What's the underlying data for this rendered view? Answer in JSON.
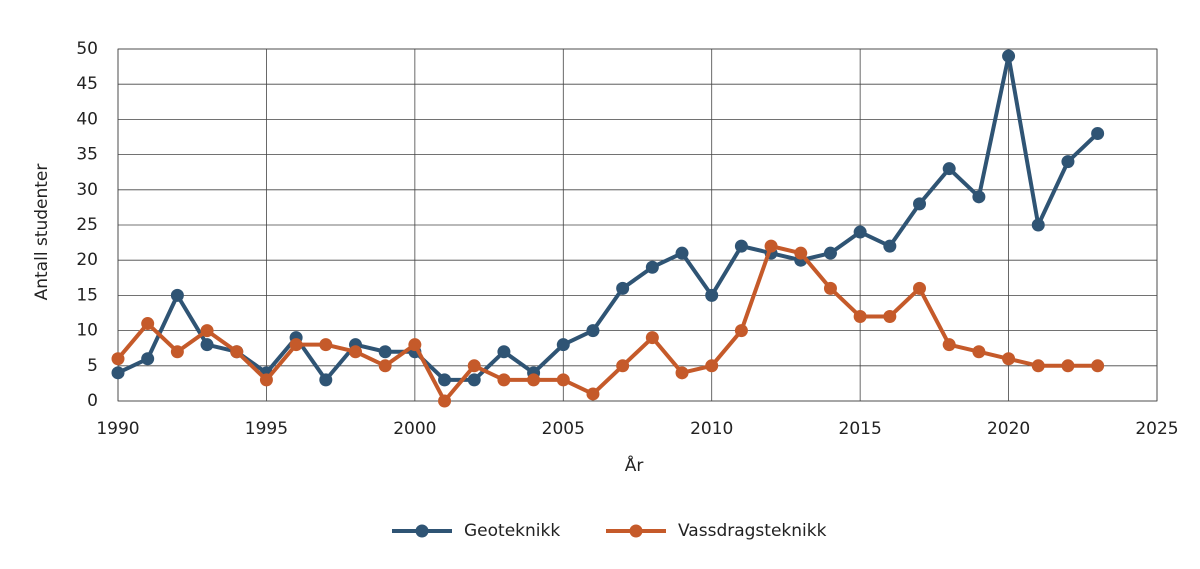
{
  "chart_data": {
    "type": "line",
    "x_label": "År",
    "y_label": "Antall studenter",
    "x": [
      1990,
      1991,
      1992,
      1993,
      1994,
      1995,
      1996,
      1997,
      1998,
      1999,
      2000,
      2001,
      2002,
      2003,
      2004,
      2005,
      2006,
      2007,
      2008,
      2009,
      2010,
      2011,
      2012,
      2013,
      2014,
      2015,
      2016,
      2017,
      2018,
      2019,
      2020,
      2021,
      2022,
      2023
    ],
    "series": [
      {
        "name": "Geoteknikk",
        "color": "#2f5474",
        "values": [
          4,
          6,
          15,
          8,
          7,
          4,
          9,
          3,
          8,
          7,
          7,
          3,
          3,
          7,
          4,
          8,
          10,
          16,
          19,
          21,
          15,
          22,
          21,
          20,
          21,
          24,
          22,
          28,
          33,
          29,
          49,
          25,
          34,
          38
        ]
      },
      {
        "name": "Vassdragsteknikk",
        "color": "#c55a2a",
        "values": [
          6,
          11,
          7,
          10,
          7,
          3,
          8,
          8,
          7,
          5,
          8,
          0,
          5,
          3,
          3,
          3,
          1,
          5,
          9,
          4,
          5,
          10,
          22,
          21,
          16,
          12,
          12,
          16,
          8,
          7,
          6,
          5,
          5,
          5
        ]
      }
    ],
    "xlim": [
      1990,
      2025
    ],
    "xticks": [
      1990,
      1995,
      2000,
      2005,
      2010,
      2015,
      2020,
      2025
    ],
    "ylim": [
      0,
      50
    ],
    "yticks": [
      0,
      5,
      10,
      15,
      20,
      25,
      30,
      35,
      40,
      45,
      50
    ],
    "grid": true,
    "legend": "bottom"
  }
}
